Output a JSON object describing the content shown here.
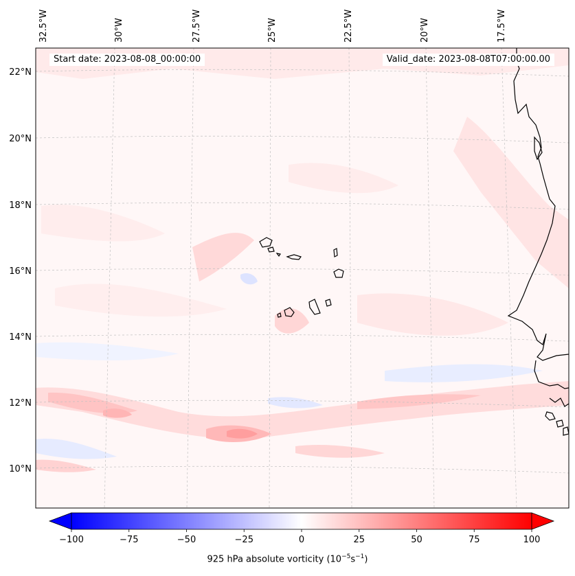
{
  "header": {
    "start_date": "Start date: 2023-08-08_00:00:00",
    "valid_date": "Valid_date: 2023-08-08T07:00:00.00"
  },
  "map": {
    "longitude_labels": [
      "32.5°W",
      "30°W",
      "27.5°W",
      "25°W",
      "22.5°W",
      "20°W",
      "17.5°W"
    ],
    "latitude_labels": [
      "22°N",
      "20°N",
      "18°N",
      "16°N",
      "14°N",
      "12°N",
      "10°N"
    ],
    "projection": "Lambert conformal (curved graticule)",
    "features": [
      "Cape Verde islands",
      "West African coastline (Mauritania, Senegal, Gambia, Guinea-Bissau)"
    ]
  },
  "colorbar": {
    "title_prefix": "925 hPa absolute vorticity (10",
    "title_exp1": "−5",
    "title_mid": "s",
    "title_exp2": "−1",
    "title_suffix": ")",
    "min": -100,
    "max": 100,
    "ticks": [
      "−100",
      "−75",
      "−50",
      "−25",
      "0",
      "25",
      "50",
      "75",
      "100"
    ],
    "tick_values": [
      -100,
      -75,
      -50,
      -25,
      0,
      25,
      50,
      75,
      100
    ],
    "color_low": "#0000ff",
    "color_mid": "#ffffff",
    "color_high": "#ff0000",
    "extend": "both"
  },
  "colors": {
    "coastline": "#000000",
    "gridline": "#b0b0b0",
    "field_base": "#fff6f6",
    "field_light_red": "#ffdede",
    "field_mid_red": "#ffb3b3",
    "field_light_blue": "#e6ebff"
  }
}
